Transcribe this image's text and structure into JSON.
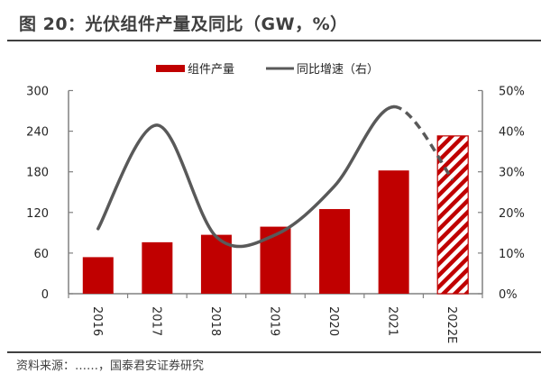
{
  "title": "图 20：光伏组件产量及同比（GW，%）",
  "source_text": "资料来源：……，国泰君安证券研究",
  "chart_data": {
    "type": "bar",
    "title": "光伏组件产量及同比（GW，%）",
    "categories": [
      "2016",
      "2017",
      "2018",
      "2019",
      "2020",
      "2021",
      "2022E"
    ],
    "series": [
      {
        "name": "组件产量",
        "type": "bar",
        "axis": "left",
        "color": "#c00000",
        "values": [
          54,
          76,
          87,
          99,
          125,
          182,
          233
        ],
        "forecast_from_index": 6
      },
      {
        "name": "同比增速（右）",
        "type": "line",
        "axis": "right",
        "color": "#595959",
        "unit": "%",
        "values": [
          16,
          41.5,
          14,
          14.5,
          26.5,
          46,
          28
        ],
        "dashed_from_index": 5
      }
    ],
    "left_axis": {
      "ylim": [
        0,
        300
      ],
      "ticks": [
        "0",
        "60",
        "120",
        "180",
        "240",
        "300"
      ]
    },
    "right_axis": {
      "ylim": [
        0,
        50
      ],
      "ticks": [
        "0%",
        "10%",
        "20%",
        "30%",
        "40%",
        "50%"
      ]
    },
    "xlabel": "",
    "ylabel": "",
    "legend": {
      "position": "top-center",
      "items": [
        {
          "label": "组件产量",
          "kind": "bar",
          "color": "#c00000"
        },
        {
          "label": "同比增速（右）",
          "kind": "line",
          "color": "#595959"
        }
      ]
    },
    "grid": false
  }
}
